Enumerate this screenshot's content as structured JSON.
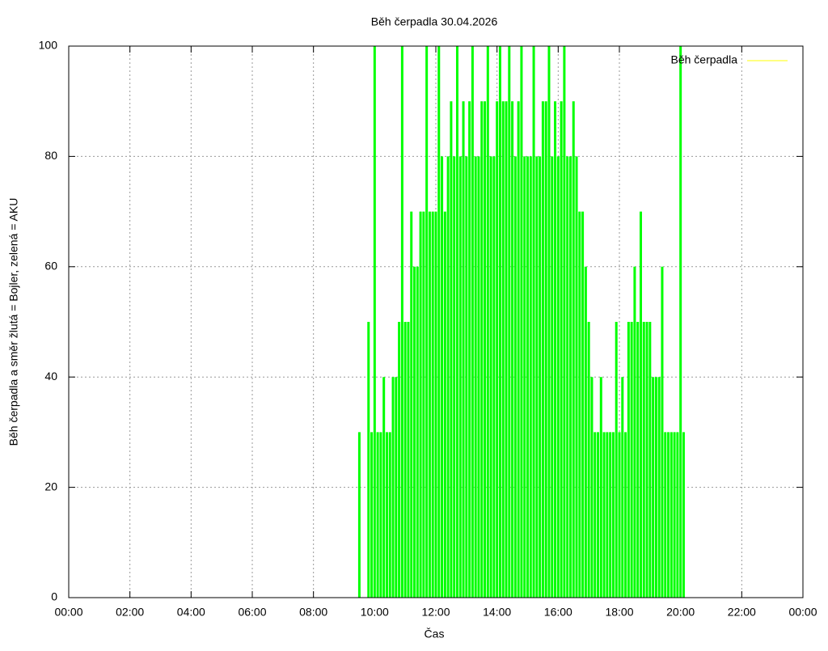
{
  "chart_data": {
    "type": "impulses",
    "title": "Běh čerpadla 30.04.2026",
    "x_label": "Čas",
    "y_label": "Běh čerpadla a směr žlutá = Bojler, zelená = AKU",
    "xlim": [
      0,
      24
    ],
    "ylim": [
      0,
      100
    ],
    "xticks": [
      {
        "value": 0,
        "label": "00:00"
      },
      {
        "value": 2,
        "label": "02:00"
      },
      {
        "value": 4,
        "label": "04:00"
      },
      {
        "value": 6,
        "label": "06:00"
      },
      {
        "value": 8,
        "label": "08:00"
      },
      {
        "value": 10,
        "label": "10:00"
      },
      {
        "value": 12,
        "label": "12:00"
      },
      {
        "value": 14,
        "label": "14:00"
      },
      {
        "value": 16,
        "label": "16:00"
      },
      {
        "value": 18,
        "label": "18:00"
      },
      {
        "value": 20,
        "label": "20:00"
      },
      {
        "value": 22,
        "label": "22:00"
      },
      {
        "value": 24,
        "label": "00:00"
      }
    ],
    "yticks": [
      0,
      20,
      40,
      60,
      80,
      100
    ],
    "grid": true,
    "legend": "top-right",
    "series": [
      {
        "name": "Běh čerpadla",
        "color": "#00ff00",
        "legend_color": "#ffff00",
        "x": [
          9.5,
          9.8,
          9.9,
          10.0,
          10.1,
          10.2,
          10.3,
          10.4,
          10.5,
          10.6,
          10.7,
          10.8,
          10.9,
          11.0,
          11.1,
          11.2,
          11.3,
          11.4,
          11.5,
          11.6,
          11.7,
          11.8,
          11.9,
          12.0,
          12.1,
          12.2,
          12.3,
          12.4,
          12.5,
          12.6,
          12.7,
          12.8,
          12.9,
          13.0,
          13.1,
          13.2,
          13.3,
          13.4,
          13.5,
          13.6,
          13.7,
          13.8,
          13.9,
          14.0,
          14.1,
          14.2,
          14.3,
          14.4,
          14.5,
          14.6,
          14.7,
          14.8,
          14.9,
          15.0,
          15.1,
          15.2,
          15.3,
          15.4,
          15.5,
          15.6,
          15.7,
          15.8,
          15.9,
          16.0,
          16.1,
          16.2,
          16.3,
          16.4,
          16.5,
          16.6,
          16.7,
          16.8,
          16.9,
          17.0,
          17.1,
          17.2,
          17.3,
          17.4,
          17.5,
          17.6,
          17.7,
          17.8,
          17.9,
          18.0,
          18.1,
          18.2,
          18.3,
          18.4,
          18.5,
          18.6,
          18.7,
          18.8,
          18.9,
          19.0,
          19.1,
          19.2,
          19.3,
          19.4,
          19.5,
          19.6,
          19.7,
          19.8,
          19.9,
          20.0,
          20.1
        ],
        "values": [
          30,
          50,
          30,
          100,
          30,
          30,
          40,
          30,
          30,
          40,
          40,
          50,
          100,
          50,
          50,
          70,
          60,
          60,
          70,
          70,
          100,
          70,
          70,
          70,
          100,
          80,
          70,
          80,
          90,
          80,
          100,
          80,
          90,
          80,
          90,
          100,
          80,
          80,
          90,
          90,
          100,
          80,
          80,
          90,
          100,
          90,
          90,
          100,
          90,
          80,
          90,
          100,
          80,
          80,
          80,
          100,
          80,
          80,
          90,
          90,
          100,
          80,
          90,
          80,
          90,
          100,
          80,
          80,
          90,
          80,
          70,
          70,
          60,
          50,
          40,
          30,
          30,
          40,
          30,
          30,
          30,
          30,
          50,
          30,
          40,
          30,
          50,
          50,
          60,
          50,
          70,
          50,
          50,
          50,
          40,
          40,
          40,
          60,
          30,
          30,
          30,
          30,
          30,
          100,
          30
        ]
      }
    ]
  }
}
